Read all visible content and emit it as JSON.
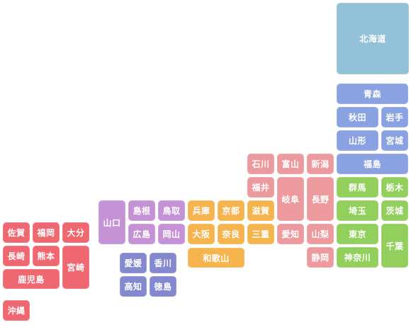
{
  "prefectures": {
    "hokkaido": "北海道",
    "aomori": "青森",
    "akita": "秋田",
    "iwate": "岩手",
    "yamagata": "山形",
    "miyagi": "宮城",
    "fukushima": "福島",
    "niigata": "新潟",
    "gunma": "群馬",
    "tochigi": "栃木",
    "saitama": "埼玉",
    "ibaraki": "茨城",
    "tokyo": "東京",
    "chiba": "千葉",
    "kanagawa": "神奈川",
    "ishikawa": "石川",
    "toyama": "富山",
    "fukui": "福井",
    "gifu": "岐阜",
    "nagano": "長野",
    "aichi": "愛知",
    "yamanashi": "山梨",
    "shizuoka": "静岡",
    "shiga": "滋賀",
    "hyogo": "兵庫",
    "kyoto": "京都",
    "osaka": "大阪",
    "nara": "奈良",
    "mie": "三重",
    "wakayama": "和歌山",
    "yamaguchi": "山口",
    "shimane": "島根",
    "tottori": "鳥取",
    "hiroshima": "広島",
    "okayama": "岡山",
    "ehime": "愛媛",
    "kagawa": "香川",
    "kochi": "高知",
    "tokushima": "徳島",
    "saga": "佐賀",
    "fukuoka": "福岡",
    "oita": "大分",
    "nagasaki": "長崎",
    "kumamoto": "熊本",
    "miyazaki": "宮崎",
    "kagoshima": "鹿児島",
    "okinawa": "沖縄"
  },
  "colors": {
    "hokkaido": "#93c2d8",
    "tohoku": "#8aa2e2",
    "kanto": "#93cf5c",
    "chubu": "#ec9a9e",
    "kinki": "#f6b44f",
    "chugoku": "#c592d6",
    "shikoku": "#8489cf",
    "kyushu": "#ef6770"
  }
}
